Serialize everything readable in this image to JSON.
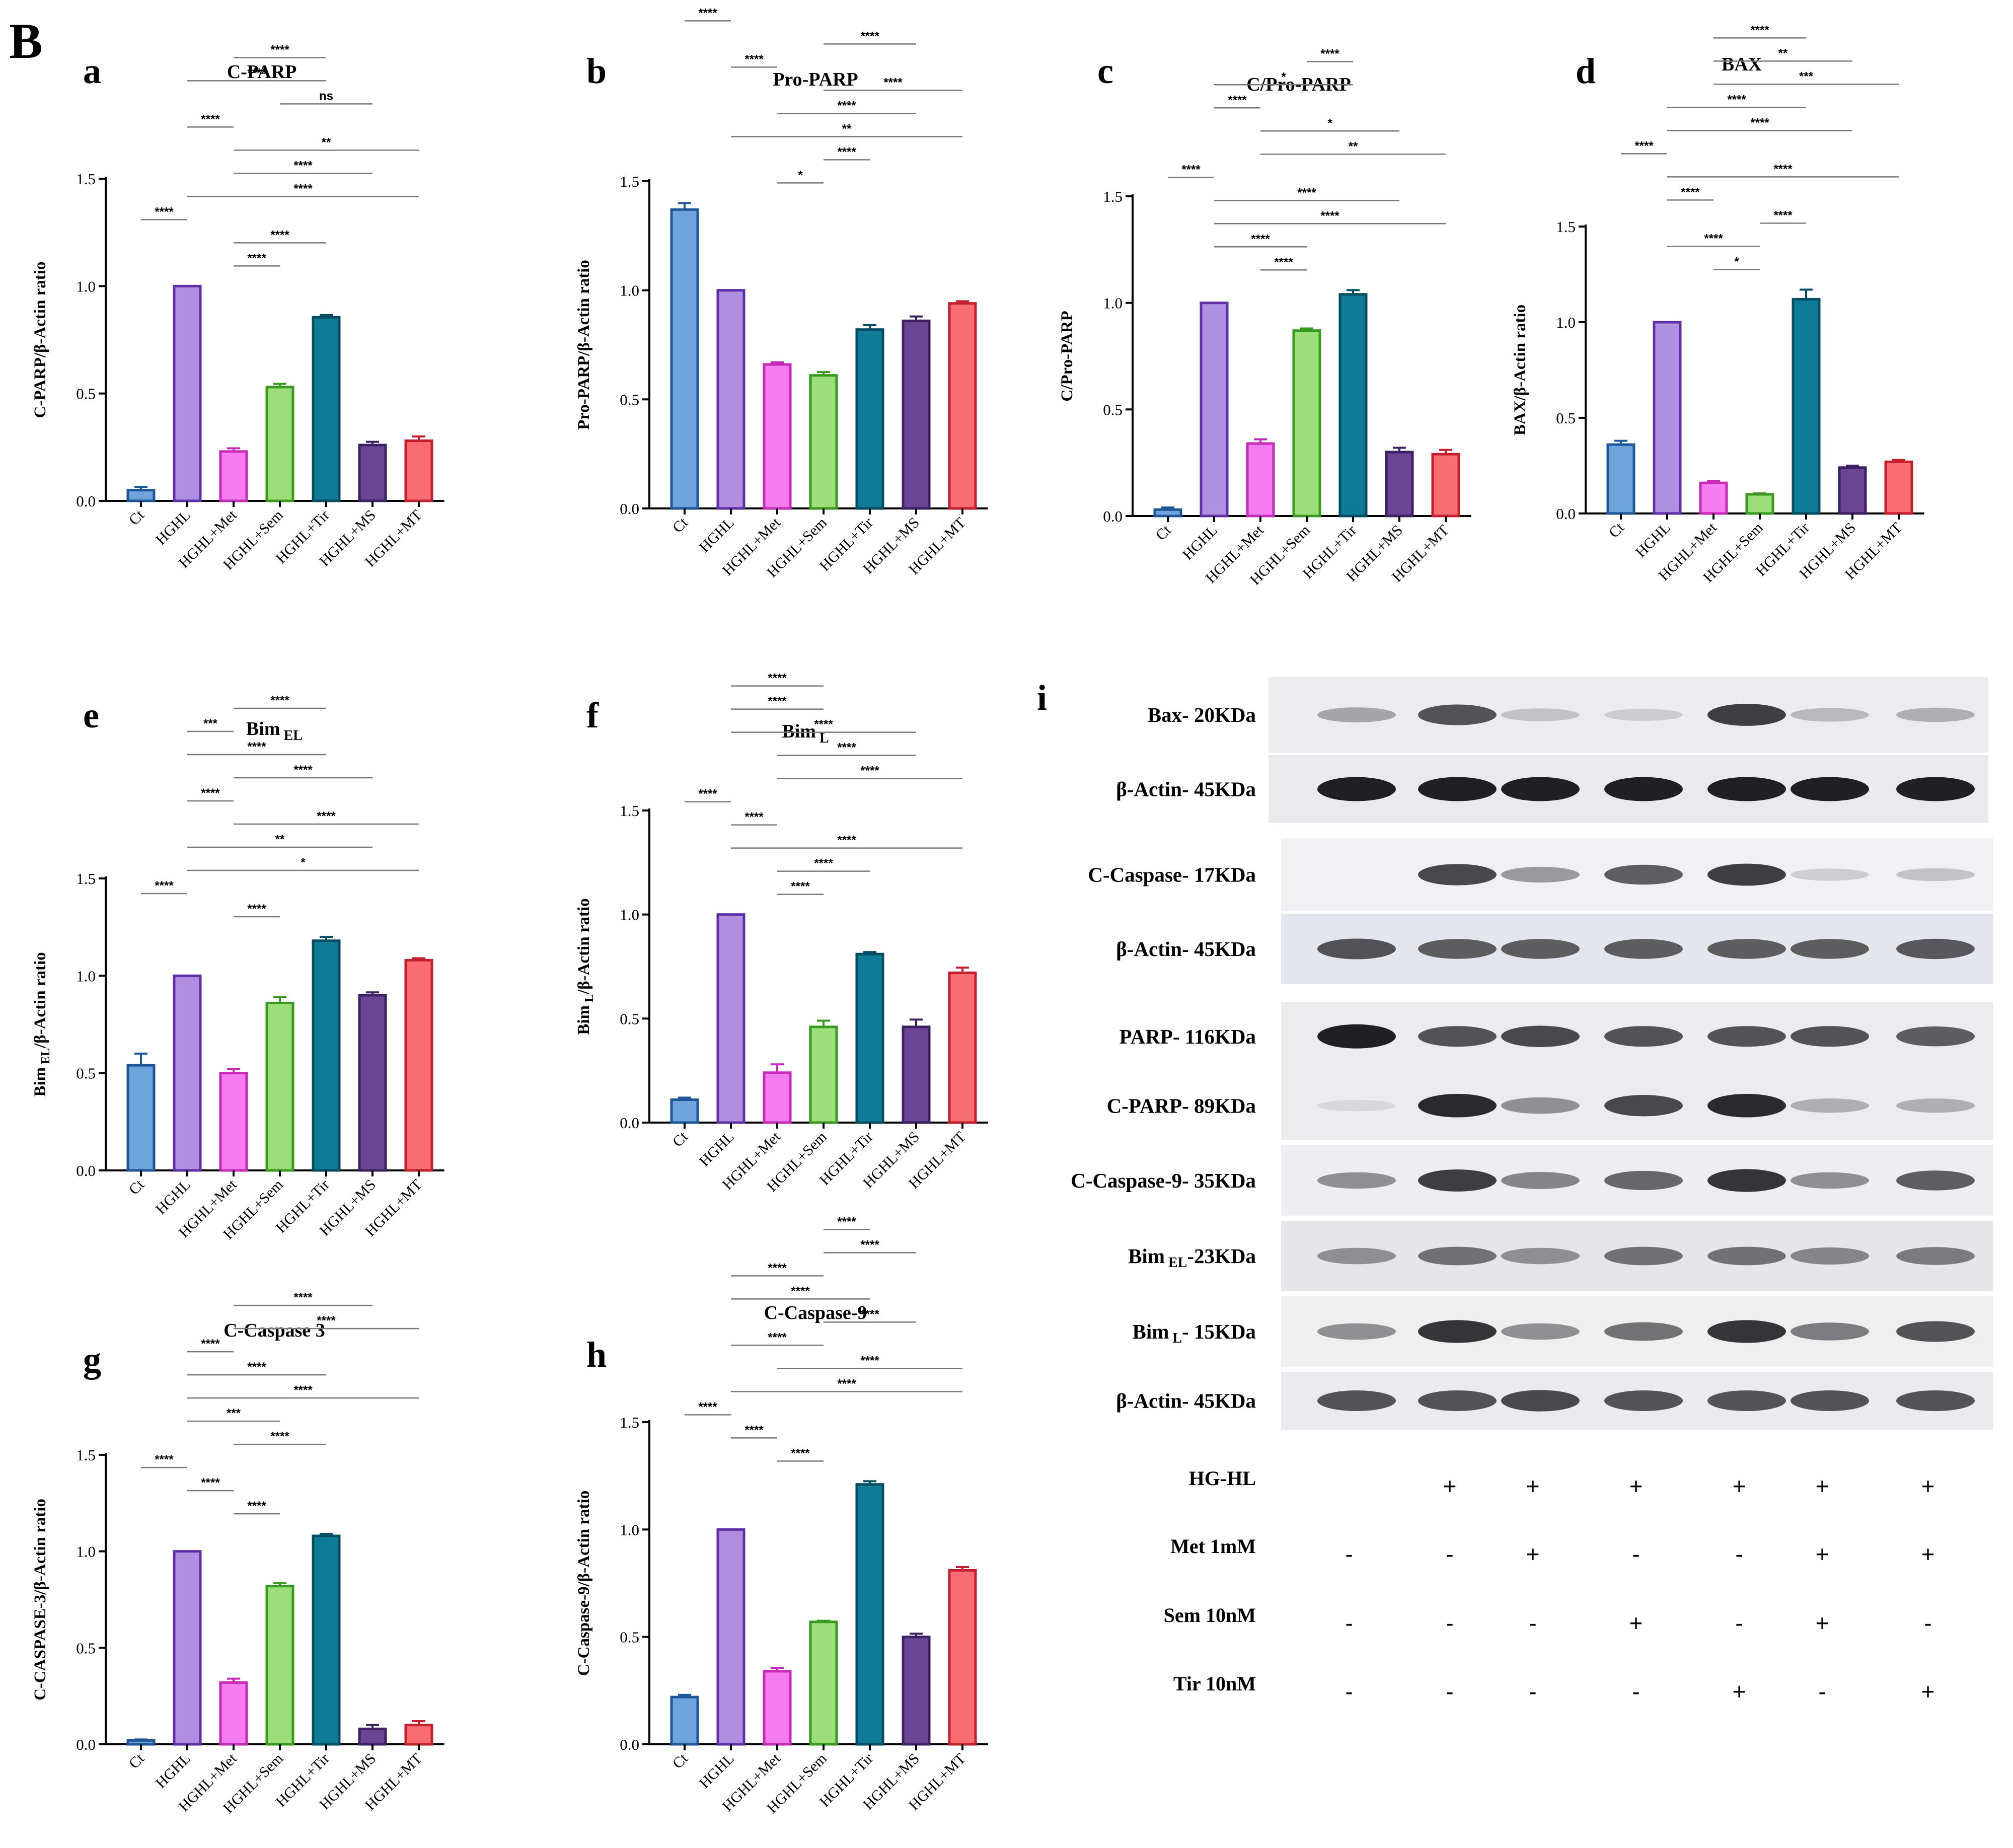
{
  "figure_letter": "B",
  "categories": [
    "Ct",
    "HGHL",
    "HGHL+Met",
    "HGHL+Sem",
    "HGHL+Tir",
    "HGHL+MS",
    "HGHL+MT"
  ],
  "colors": {
    "fills": [
      "#6fa3db",
      "#b08ee0",
      "#f57cf0",
      "#9bde7a",
      "#0f7b97",
      "#6a4593",
      "#fa6c74"
    ],
    "strokes": [
      "#1d5699",
      "#5e2fa6",
      "#c62ab7",
      "#3a9a1f",
      "#034d63",
      "#3d2063",
      "#c41f2c"
    ]
  },
  "chart_data": [
    {
      "id": "a",
      "type": "bar",
      "title": "C-PARP",
      "ylabel": "C-PARP/β-Actin ratio",
      "ylim": [
        0,
        1.5
      ],
      "yticks": [
        "0.0",
        "0.5",
        "1.0",
        "1.5"
      ],
      "values": [
        0.05,
        1.0,
        0.23,
        0.53,
        0.855,
        0.26,
        0.28
      ],
      "errors": [
        0.015,
        0,
        0.015,
        0.015,
        0.01,
        0.015,
        0.02
      ],
      "comparisons": [
        {
          "from": 2,
          "to": 4,
          "label": "****"
        },
        {
          "from": 1,
          "to": 4,
          "label": "****"
        },
        {
          "from": 3,
          "to": 5,
          "label": "ns"
        },
        {
          "from": 1,
          "to": 2,
          "label": "****"
        },
        {
          "from": 2,
          "to": 6,
          "label": "**"
        },
        {
          "from": 2,
          "to": 5,
          "label": "****"
        },
        {
          "from": 1,
          "to": 6,
          "label": "****"
        },
        {
          "from": 0,
          "to": 1,
          "label": "****"
        },
        {
          "from": 2,
          "to": 4,
          "label": "****"
        },
        {
          "from": 2,
          "to": 3,
          "label": "****"
        }
      ]
    },
    {
      "id": "b",
      "type": "bar",
      "title": "Pro-PARP",
      "ylabel": "Pro-PARP/β-Actin ratio",
      "ylim": [
        0,
        1.5
      ],
      "yticks": [
        "0.0",
        "0.5",
        "1.0",
        "1.5"
      ],
      "values": [
        1.37,
        1.0,
        0.66,
        0.61,
        0.82,
        0.86,
        0.94
      ],
      "errors": [
        0.03,
        0,
        0.01,
        0.015,
        0.02,
        0.02,
        0.01
      ],
      "comparisons": [
        {
          "from": 2,
          "to": 4,
          "label": "****"
        },
        {
          "from": 2,
          "to": 5,
          "label": "****"
        },
        {
          "from": 0,
          "to": 1,
          "label": "****"
        },
        {
          "from": 3,
          "to": 5,
          "label": "****"
        },
        {
          "from": 1,
          "to": 2,
          "label": "****"
        },
        {
          "from": 3,
          "to": 6,
          "label": "****"
        },
        {
          "from": 2,
          "to": 5,
          "label": "****"
        },
        {
          "from": 1,
          "to": 6,
          "label": "**"
        },
        {
          "from": 3,
          "to": 4,
          "label": "****"
        },
        {
          "from": 2,
          "to": 3,
          "label": "*"
        }
      ]
    },
    {
      "id": "c",
      "type": "bar",
      "title": "C/Pro-PARP",
      "ylabel": "C/Pro-PARP",
      "ylim": [
        0,
        1.5
      ],
      "yticks": [
        "0.0",
        "0.5",
        "1.0",
        "1.5"
      ],
      "values": [
        0.03,
        1.0,
        0.34,
        0.87,
        1.04,
        0.3,
        0.29
      ],
      "errors": [
        0.01,
        0,
        0.02,
        0.01,
        0.02,
        0.02,
        0.02
      ],
      "comparisons": [
        {
          "from": 3,
          "to": 4,
          "label": "****"
        },
        {
          "from": 1,
          "to": 4,
          "label": "*"
        },
        {
          "from": 1,
          "to": 2,
          "label": "****"
        },
        {
          "from": 2,
          "to": 5,
          "label": "*"
        },
        {
          "from": 2,
          "to": 6,
          "label": "**"
        },
        {
          "from": 0,
          "to": 1,
          "label": "****"
        },
        {
          "from": 1,
          "to": 5,
          "label": "****"
        },
        {
          "from": 1,
          "to": 6,
          "label": "****"
        },
        {
          "from": 1,
          "to": 3,
          "label": "****"
        },
        {
          "from": 2,
          "to": 3,
          "label": "****"
        }
      ]
    },
    {
      "id": "d",
      "type": "bar",
      "title": "BAX",
      "ylabel": "BAX/β-Actin ratio",
      "ylim": [
        0,
        1.5
      ],
      "yticks": [
        "0.0",
        "0.5",
        "1.0",
        "1.5"
      ],
      "values": [
        0.36,
        1.0,
        0.16,
        0.1,
        1.12,
        0.24,
        0.27
      ],
      "errors": [
        0.02,
        0,
        0.01,
        0.005,
        0.05,
        0.01,
        0.01
      ],
      "comparisons": [
        {
          "from": 2,
          "to": 4,
          "label": "****"
        },
        {
          "from": 2,
          "to": 5,
          "label": "**"
        },
        {
          "from": 2,
          "to": 6,
          "label": "***"
        },
        {
          "from": 1,
          "to": 4,
          "label": "****"
        },
        {
          "from": 1,
          "to": 5,
          "label": "****"
        },
        {
          "from": 0,
          "to": 1,
          "label": "****"
        },
        {
          "from": 1,
          "to": 6,
          "label": "****"
        },
        {
          "from": 1,
          "to": 2,
          "label": "****"
        },
        {
          "from": 3,
          "to": 4,
          "label": "****"
        },
        {
          "from": 1,
          "to": 3,
          "label": "****"
        },
        {
          "from": 2,
          "to": 3,
          "label": "*"
        }
      ]
    },
    {
      "id": "e",
      "type": "bar",
      "title": "Bim",
      "title_sub": "EL",
      "ylabel": "Bim",
      "ylabel_sub": "EL",
      "ylabel_rest": "/β-Actin ratio",
      "ylim": [
        0,
        1.5
      ],
      "yticks": [
        "0.0",
        "0.5",
        "1.0",
        "1.5"
      ],
      "values": [
        0.54,
        1.0,
        0.5,
        0.86,
        1.18,
        0.9,
        1.08
      ],
      "errors": [
        0.06,
        0,
        0.02,
        0.03,
        0.02,
        0.015,
        0.01
      ],
      "comparisons": [
        {
          "from": 2,
          "to": 4,
          "label": "****"
        },
        {
          "from": 1,
          "to": 2,
          "label": "***"
        },
        {
          "from": 1,
          "to": 4,
          "label": "****"
        },
        {
          "from": 2,
          "to": 5,
          "label": "****"
        },
        {
          "from": 1,
          "to": 2,
          "label": "****"
        },
        {
          "from": 2,
          "to": 6,
          "label": "****"
        },
        {
          "from": 1,
          "to": 5,
          "label": "**"
        },
        {
          "from": 1,
          "to": 6,
          "label": "*"
        },
        {
          "from": 0,
          "to": 1,
          "label": "****"
        },
        {
          "from": 2,
          "to": 3,
          "label": "****"
        }
      ]
    },
    {
      "id": "f",
      "type": "bar",
      "title": "Bim",
      "title_sub": "L",
      "ylabel": "Bim",
      "ylabel_sub": "L",
      "ylabel_rest": "/β-Actin ratio",
      "ylim": [
        0,
        1.5
      ],
      "yticks": [
        "0.0",
        "0.5",
        "1.0",
        "1.5"
      ],
      "values": [
        0.11,
        1.0,
        0.24,
        0.46,
        0.81,
        0.46,
        0.72
      ],
      "errors": [
        0.01,
        0,
        0.04,
        0.03,
        0.01,
        0.035,
        0.025
      ],
      "comparisons": [
        {
          "from": 1,
          "to": 3,
          "label": "****"
        },
        {
          "from": 1,
          "to": 3,
          "label": "****"
        },
        {
          "from": 1,
          "to": 5,
          "label": "****"
        },
        {
          "from": 2,
          "to": 5,
          "label": "****"
        },
        {
          "from": 2,
          "to": 6,
          "label": "****"
        },
        {
          "from": 0,
          "to": 1,
          "label": "****"
        },
        {
          "from": 1,
          "to": 2,
          "label": "****"
        },
        {
          "from": 1,
          "to": 6,
          "label": "****"
        },
        {
          "from": 2,
          "to": 4,
          "label": "****"
        },
        {
          "from": 2,
          "to": 3,
          "label": "****"
        }
      ]
    },
    {
      "id": "g",
      "type": "bar",
      "title": "C-Caspase 3",
      "ylabel": "C-CASPASE-3/β-Actin ratio",
      "ylim": [
        0,
        1.5
      ],
      "yticks": [
        "0.0",
        "0.5",
        "1.0",
        "1.5"
      ],
      "values": [
        0.02,
        1.0,
        0.32,
        0.82,
        1.08,
        0.08,
        0.1
      ],
      "errors": [
        0.005,
        0,
        0.02,
        0.015,
        0.01,
        0.02,
        0.02
      ],
      "comparisons": [
        {
          "from": 2,
          "to": 5,
          "label": "****"
        },
        {
          "from": 2,
          "to": 6,
          "label": "****"
        },
        {
          "from": 1,
          "to": 2,
          "label": "****"
        },
        {
          "from": 1,
          "to": 4,
          "label": "****"
        },
        {
          "from": 1,
          "to": 6,
          "label": "****"
        },
        {
          "from": 1,
          "to": 3,
          "label": "***"
        },
        {
          "from": 2,
          "to": 4,
          "label": "****"
        },
        {
          "from": 0,
          "to": 1,
          "label": "****"
        },
        {
          "from": 1,
          "to": 2,
          "label": "****"
        },
        {
          "from": 2,
          "to": 3,
          "label": "****"
        }
      ]
    },
    {
      "id": "h",
      "type": "bar",
      "title": "C-Caspase-9",
      "ylabel": "C-Caspase-9/β-Actin ratio",
      "ylim": [
        0,
        1.5
      ],
      "yticks": [
        "0.0",
        "0.5",
        "1.0",
        "1.5"
      ],
      "values": [
        0.22,
        1.0,
        0.34,
        0.57,
        1.21,
        0.5,
        0.81
      ],
      "errors": [
        0.01,
        0,
        0.015,
        0.005,
        0.015,
        0.015,
        0.015
      ],
      "comparisons": [
        {
          "from": 3,
          "to": 4,
          "label": "****"
        },
        {
          "from": 3,
          "to": 5,
          "label": "****"
        },
        {
          "from": 1,
          "to": 3,
          "label": "****"
        },
        {
          "from": 1,
          "to": 4,
          "label": "****"
        },
        {
          "from": 3,
          "to": 5,
          "label": "****"
        },
        {
          "from": 1,
          "to": 3,
          "label": "****"
        },
        {
          "from": 2,
          "to": 6,
          "label": "****"
        },
        {
          "from": 1,
          "to": 6,
          "label": "****"
        },
        {
          "from": 0,
          "to": 1,
          "label": "****"
        },
        {
          "from": 1,
          "to": 2,
          "label": "****"
        },
        {
          "from": 2,
          "to": 3,
          "label": "****"
        }
      ]
    }
  ],
  "blot": {
    "letter": "i",
    "rows": [
      {
        "label": "Bax- 20KDa",
        "intensity": [
          0.35,
          0.75,
          0.2,
          0.15,
          0.85,
          0.25,
          0.3
        ]
      },
      {
        "label": "β-Actin- 45KDa",
        "intensity": [
          1,
          1,
          1,
          1,
          1,
          1,
          1
        ]
      },
      {
        "label": "C-Caspase- 17KDa",
        "intensity": [
          0.0,
          0.8,
          0.4,
          0.7,
          0.85,
          0.15,
          0.2
        ]
      },
      {
        "label": "β-Actin- 45KDa",
        "intensity": [
          0.75,
          0.7,
          0.7,
          0.7,
          0.7,
          0.7,
          0.72
        ]
      },
      {
        "label": "PARP- 116KDa",
        "intensity": [
          1,
          0.75,
          0.8,
          0.75,
          0.75,
          0.75,
          0.7
        ]
      },
      {
        "label": "C-PARP- 89KDa",
        "intensity": [
          0.1,
          0.95,
          0.45,
          0.8,
          0.95,
          0.3,
          0.3
        ]
      },
      {
        "label": "C-Caspase-9- 35KDa",
        "intensity": [
          0.45,
          0.85,
          0.5,
          0.65,
          0.9,
          0.45,
          0.7
        ]
      },
      {
        "label": "Bim",
        "label_sub": "EL",
        "label_rest": "-23KDa",
        "intensity": [
          0.45,
          0.6,
          0.45,
          0.6,
          0.6,
          0.5,
          0.55
        ]
      },
      {
        "label": "Bim",
        "label_sub": "L",
        "label_rest": "- 15KDa",
        "intensity": [
          0.45,
          0.9,
          0.45,
          0.6,
          0.9,
          0.55,
          0.75
        ]
      },
      {
        "label": "β-Actin- 45KDa",
        "intensity": [
          0.75,
          0.75,
          0.8,
          0.75,
          0.75,
          0.75,
          0.75
        ]
      }
    ],
    "treatments": [
      {
        "label": "HG-HL",
        "marks": [
          "",
          "+",
          "+",
          "+",
          "+",
          "+",
          "+"
        ]
      },
      {
        "label": "Met 1mM",
        "marks": [
          "-",
          "-",
          "+",
          "-",
          "-",
          "+",
          "+"
        ]
      },
      {
        "label": "Sem 10nM",
        "marks": [
          "-",
          "-",
          "-",
          "+",
          "-",
          "+",
          "-"
        ]
      },
      {
        "label": "Tir 10nM",
        "marks": [
          "-",
          "-",
          "-",
          "-",
          "+",
          "-",
          "+"
        ]
      }
    ]
  }
}
